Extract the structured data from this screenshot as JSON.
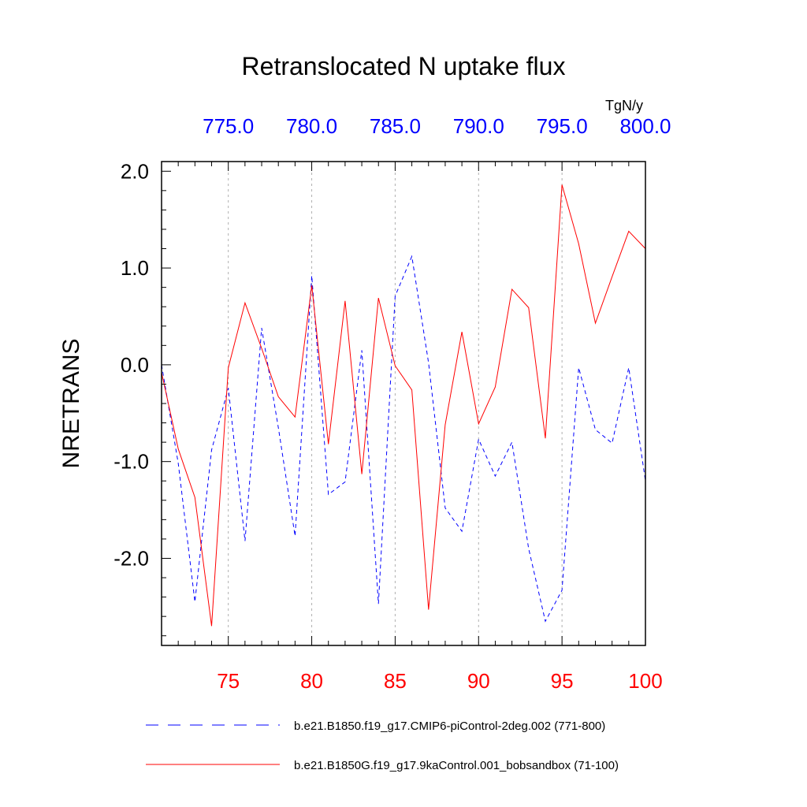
{
  "chart_data": {
    "type": "line",
    "title": "Retranslocated N uptake flux",
    "units": "TgN/y",
    "ylabel": "NRETRANS",
    "ylim": [
      -2.9,
      2.1
    ],
    "y_ticks": [
      {
        "value": 2.0,
        "label": "2.0"
      },
      {
        "value": 1.0,
        "label": "1.0"
      },
      {
        "value": 0.0,
        "label": "0.0"
      },
      {
        "value": -1.0,
        "label": "-1.0"
      },
      {
        "value": -2.0,
        "label": "-2.0"
      }
    ],
    "x_bottom": {
      "range": [
        71,
        100
      ],
      "ticks": [
        {
          "value": 75,
          "label": "75"
        },
        {
          "value": 80,
          "label": "80"
        },
        {
          "value": 85,
          "label": "85"
        },
        {
          "value": 90,
          "label": "90"
        },
        {
          "value": 95,
          "label": "95"
        },
        {
          "value": 100,
          "label": "100"
        }
      ],
      "color": "#ff0000"
    },
    "x_top": {
      "range": [
        771,
        800
      ],
      "ticks": [
        {
          "value": 775,
          "label": "775.0"
        },
        {
          "value": 780,
          "label": "780.0"
        },
        {
          "value": 785,
          "label": "785.0"
        },
        {
          "value": 790,
          "label": "790.0"
        },
        {
          "value": 795,
          "label": "795.0"
        },
        {
          "value": 800,
          "label": "800.0"
        }
      ],
      "color": "#0000ff"
    },
    "grid_x": [
      75,
      80,
      85,
      90,
      95
    ],
    "series": [
      {
        "name": "b.e21.B1850.f19_g17.CMIP6-piControl-2deg.002 (771-800)",
        "color": "#0000ff",
        "dash": "dashed",
        "x": [
          71,
          72,
          73,
          74,
          75,
          76,
          77,
          78,
          79,
          80,
          81,
          82,
          83,
          84,
          85,
          86,
          87,
          88,
          89,
          90,
          91,
          92,
          93,
          94,
          95,
          96,
          97,
          98,
          99,
          100
        ],
        "values": [
          0.0,
          -1.02,
          -2.45,
          -0.88,
          -0.24,
          -1.82,
          0.38,
          -0.65,
          -1.77,
          0.92,
          -1.34,
          -1.21,
          0.15,
          -2.47,
          0.71,
          1.12,
          0.02,
          -1.48,
          -1.72,
          -0.77,
          -1.15,
          -0.8,
          -1.9,
          -2.65,
          -2.33,
          -0.03,
          -0.67,
          -0.81,
          -0.03,
          -1.2
        ]
      },
      {
        "name": "b.e21.B1850G.f19_g17.9kaControl.001_bobsandbox (71-100)",
        "color": "#ff0000",
        "dash": "solid",
        "x": [
          71,
          72,
          73,
          74,
          75,
          76,
          77,
          78,
          79,
          80,
          81,
          82,
          83,
          84,
          85,
          86,
          87,
          88,
          89,
          90,
          91,
          92,
          93,
          94,
          95,
          96,
          97,
          98,
          99,
          100
        ],
        "values": [
          -0.08,
          -0.87,
          -1.37,
          -2.7,
          -0.03,
          0.64,
          0.17,
          -0.33,
          -0.54,
          0.82,
          -0.82,
          0.66,
          -1.13,
          0.69,
          -0.01,
          -0.26,
          -2.53,
          -0.62,
          0.34,
          -0.61,
          -0.23,
          0.78,
          0.59,
          -0.76,
          1.86,
          1.25,
          0.43,
          0.91,
          1.38,
          1.2
        ]
      }
    ],
    "legend_position": "bottom"
  }
}
